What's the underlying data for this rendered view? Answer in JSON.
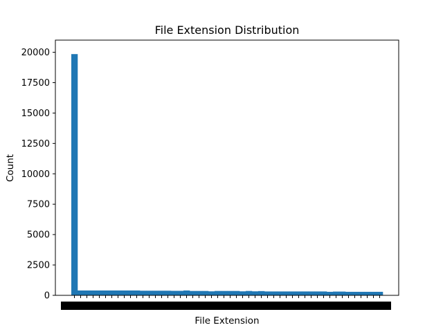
{
  "chart_data": {
    "type": "bar",
    "title": "File Extension Distribution",
    "xlabel": "File Extension",
    "ylabel": "Count",
    "ylim": [
      0,
      21000
    ],
    "yticks": [
      0,
      2500,
      5000,
      7500,
      10000,
      12500,
      15000,
      17500,
      20000
    ],
    "ytick_labels": [
      "0",
      "2500",
      "5000",
      "7500",
      "10000",
      "12500",
      "15000",
      "17500",
      "20000"
    ],
    "grid": false,
    "legend": "none",
    "bar_color": "#1f77b4",
    "xtick_labels_legible": false,
    "bar_count": 50,
    "values": [
      19850,
      400,
      400,
      400,
      400,
      400,
      400,
      400,
      400,
      400,
      400,
      380,
      380,
      380,
      380,
      380,
      370,
      370,
      400,
      360,
      360,
      360,
      330,
      360,
      360,
      360,
      360,
      330,
      360,
      330,
      350,
      320,
      320,
      320,
      320,
      320,
      320,
      320,
      320,
      320,
      320,
      290,
      310,
      310,
      290,
      290,
      290,
      290,
      290,
      290
    ]
  }
}
